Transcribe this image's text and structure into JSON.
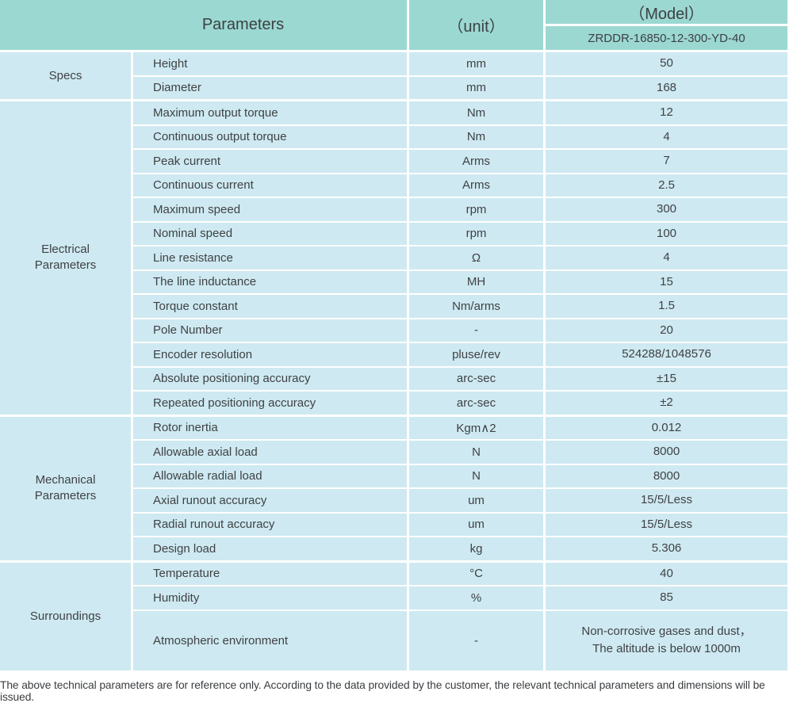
{
  "table": {
    "header": {
      "parameters": "Parameters",
      "unit": "（unit）",
      "model": "（Model）",
      "model_value": "ZRDDR-16850-12-300-YD-40"
    },
    "sections": [
      {
        "label": "Specs",
        "rows": [
          {
            "param": "Height",
            "unit": "mm",
            "value": "50"
          },
          {
            "param": "Diameter",
            "unit": "mm",
            "value": "168"
          }
        ]
      },
      {
        "label": "Electrical\nParameters",
        "rows": [
          {
            "param": "Maximum output torque",
            "unit": "Nm",
            "value": "12"
          },
          {
            "param": "Continuous output torque",
            "unit": "Nm",
            "value": "4"
          },
          {
            "param": "Peak current",
            "unit": "Arms",
            "value": "7"
          },
          {
            "param": "Continuous current",
            "unit": "Arms",
            "value": "2.5"
          },
          {
            "param": "Maximum speed",
            "unit": "rpm",
            "value": "300"
          },
          {
            "param": "Nominal speed",
            "unit": "rpm",
            "value": "100"
          },
          {
            "param": "Line resistance",
            "unit": "Ω",
            "value": "4"
          },
          {
            "param": "The line inductance",
            "unit": "MH",
            "value": "15"
          },
          {
            "param": "Torque constant",
            "unit": "Nm/arms",
            "value": "1.5"
          },
          {
            "param": "Pole Number",
            "unit": "-",
            "value": "20"
          },
          {
            "param": "Encoder resolution",
            "unit": "pluse/rev",
            "value": "524288/1048576"
          },
          {
            "param": "Absolute positioning accuracy",
            "unit": "arc-sec",
            "value": "±15"
          },
          {
            "param": "Repeated positioning accuracy",
            "unit": "arc-sec",
            "value": "±2"
          }
        ]
      },
      {
        "label": "Mechanical\nParameters",
        "rows": [
          {
            "param": "Rotor inertia",
            "unit": "Kgm∧2",
            "value": "0.012"
          },
          {
            "param": "Allowable axial load",
            "unit": "N",
            "value": "8000"
          },
          {
            "param": "Allowable radial load",
            "unit": "N",
            "value": "8000"
          },
          {
            "param": "Axial runout accuracy",
            "unit": "um",
            "value": "15/5/Less"
          },
          {
            "param": "Radial runout accuracy",
            "unit": "um",
            "value": "15/5/Less"
          },
          {
            "param": "Design load",
            "unit": "kg",
            "value": "5.306"
          }
        ]
      },
      {
        "label": "Surroundings",
        "rows": [
          {
            "param": "Temperature",
            "unit": "°C",
            "value": "40"
          },
          {
            "param": "Humidity",
            "unit": "%",
            "value": "85"
          },
          {
            "param": "Atmospheric environment",
            "unit": "-",
            "value": "Non-corrosive gases and dust，\nThe altitude is below 1000m"
          }
        ]
      }
    ]
  },
  "footer": {
    "note": "The above technical parameters are for reference only. According to the data provided by the customer, the relevant technical parameters and dimensions will be issued."
  },
  "colors": {
    "header_bg": "#9cd8d2",
    "cell_bg": "#cee9f1",
    "text": "#3f4245"
  }
}
